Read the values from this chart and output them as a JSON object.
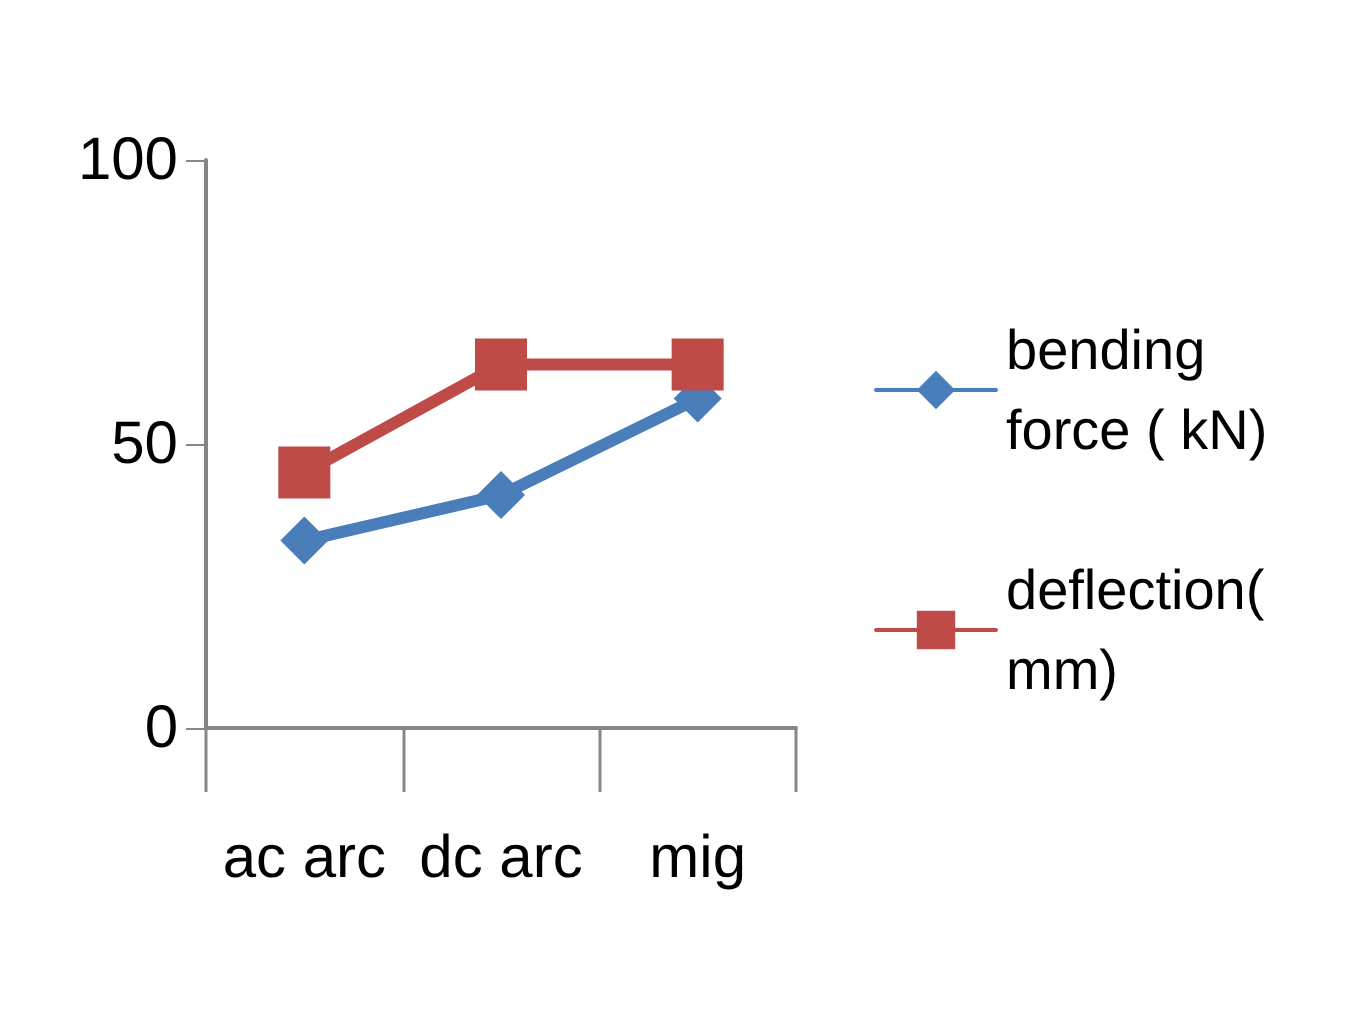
{
  "chart_data": {
    "type": "line",
    "categories": [
      "ac arc",
      "dc arc",
      "mig"
    ],
    "series": [
      {
        "name": "bending force ( kN)",
        "color": "#4a7ebb",
        "marker": "diamond",
        "values": [
          33,
          41,
          58
        ]
      },
      {
        "name": "deflection(mm)",
        "color": "#be4b48",
        "marker": "square",
        "values": [
          45,
          64,
          64
        ]
      }
    ],
    "ylim": [
      0,
      100
    ],
    "yticks": [
      0,
      50,
      100
    ],
    "grid": false,
    "legend": "right"
  }
}
